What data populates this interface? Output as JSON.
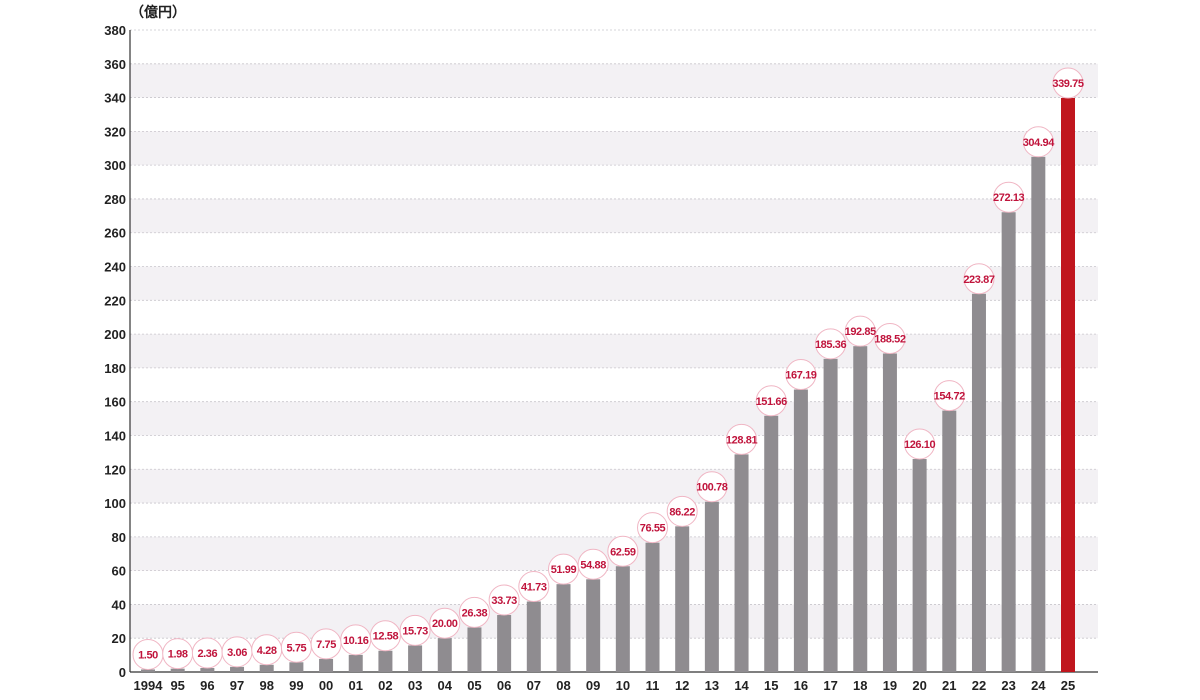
{
  "chart_data": {
    "type": "bar",
    "unit_label": "（億円）",
    "categories": [
      "1994",
      "95",
      "96",
      "97",
      "98",
      "99",
      "00",
      "01",
      "02",
      "03",
      "04",
      "05",
      "06",
      "07",
      "08",
      "09",
      "10",
      "11",
      "12",
      "13",
      "14",
      "15",
      "16",
      "17",
      "18",
      "19",
      "20",
      "21",
      "22",
      "23",
      "24",
      "25"
    ],
    "values": [
      1.5,
      1.98,
      2.36,
      3.06,
      4.28,
      5.75,
      7.75,
      10.16,
      12.58,
      15.73,
      20.0,
      26.38,
      33.73,
      41.73,
      51.99,
      54.88,
      62.59,
      76.55,
      86.22,
      100.78,
      128.81,
      151.66,
      167.19,
      185.36,
      192.85,
      188.52,
      126.1,
      154.72,
      223.87,
      272.13,
      304.94,
      339.75
    ],
    "value_labels": [
      "1.50",
      "1.98",
      "2.36",
      "3.06",
      "4.28",
      "5.75",
      "7.75",
      "10.16",
      "12.58",
      "15.73",
      "20.00",
      "26.38",
      "33.73",
      "41.73",
      "51.99",
      "54.88",
      "62.59",
      "76.55",
      "86.22",
      "100.78",
      "128.81",
      "151.66",
      "167.19",
      "185.36",
      "192.85",
      "188.52",
      "126.10",
      "154.72",
      "223.87",
      "272.13",
      "304.94",
      "339.75"
    ],
    "ylim": [
      0,
      380
    ],
    "yticks": [
      0,
      20,
      40,
      60,
      80,
      100,
      120,
      140,
      160,
      180,
      200,
      220,
      240,
      260,
      280,
      300,
      320,
      340,
      360,
      380
    ],
    "grid": true,
    "colors": {
      "bar": "#8f8c90",
      "highlight_bar": "#c0161e",
      "label": "#c0143c",
      "band": "#f3f1f4"
    },
    "highlight_index": 31
  }
}
